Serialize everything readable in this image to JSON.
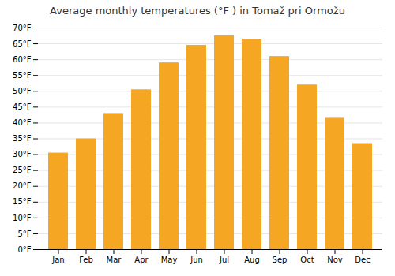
{
  "chart_data": {
    "type": "bar",
    "title": "Average monthly temperatures (°F ) in Tomaž pri Ormožu",
    "categories": [
      "Jan",
      "Feb",
      "Mar",
      "Apr",
      "May",
      "Jun",
      "Jul",
      "Aug",
      "Sep",
      "Oct",
      "Nov",
      "Dec"
    ],
    "values": [
      30.5,
      35.0,
      43.0,
      50.5,
      59.0,
      64.5,
      67.5,
      66.5,
      61.0,
      52.0,
      41.5,
      33.5
    ],
    "color": "#F5A623",
    "ylim": [
      0,
      70
    ],
    "yticks": [
      {
        "value": 0,
        "label": "0°F"
      },
      {
        "value": 5,
        "label": "5°F"
      },
      {
        "value": 10,
        "label": "10°F"
      },
      {
        "value": 15,
        "label": "15°F"
      },
      {
        "value": 20,
        "label": "20°F"
      },
      {
        "value": 25,
        "label": "25°F"
      },
      {
        "value": 30,
        "label": "30°F"
      },
      {
        "value": 35,
        "label": "35°F"
      },
      {
        "value": 40,
        "label": "40°F"
      },
      {
        "value": 45,
        "label": "45°F"
      },
      {
        "value": 50,
        "label": "50°F"
      },
      {
        "value": 55,
        "label": "55°F"
      },
      {
        "value": 60,
        "label": "60°F"
      },
      {
        "value": 65,
        "label": "65°F"
      },
      {
        "value": 70,
        "label": "70°F"
      }
    ],
    "grid": true
  }
}
